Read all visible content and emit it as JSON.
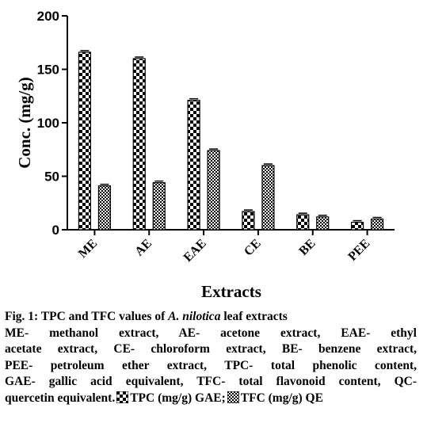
{
  "chart_data": {
    "type": "bar",
    "ylabel": "Conc. (mg/g)",
    "xlabel": "Extracts",
    "ylim": [
      0,
      200
    ],
    "yticks": [
      0,
      50,
      100,
      150,
      200
    ],
    "categories": [
      "ME",
      "AE",
      "EAE",
      "CE",
      "BE",
      "PEE"
    ],
    "series": [
      {
        "name": "TPC (mg/g) GAE",
        "pattern": "checker",
        "values": [
          166,
          160,
          121,
          17,
          14,
          7
        ]
      },
      {
        "name": "TFC (mg/g) QE",
        "pattern": "fine-checker",
        "values": [
          41,
          44,
          74,
          60,
          12,
          10
        ]
      }
    ],
    "error_bars": true,
    "grid": false,
    "legend": "in caption"
  },
  "caption": {
    "fig_prefix": "Fig. 1: TPC and TFC values of ",
    "species": "A. nilotica",
    "fig_suffix": " leaf extracts",
    "lines": [
      "ME- methanol extract, AE- acetone extract, EAE- ethyl",
      "acetate extract, CE- chloroform extract, BE- benzene extract,",
      "PEE- petroleum ether extract, TPC- total phenolic content,",
      "GAE- gallic acid equivalent, TFC- total flavonoid content, QC-"
    ],
    "last_line_start": "quercetin equivalent.",
    "legend_tpc": "TPC (mg/g) GAE;",
    "legend_tfc": "TFC (mg/g) QE"
  }
}
